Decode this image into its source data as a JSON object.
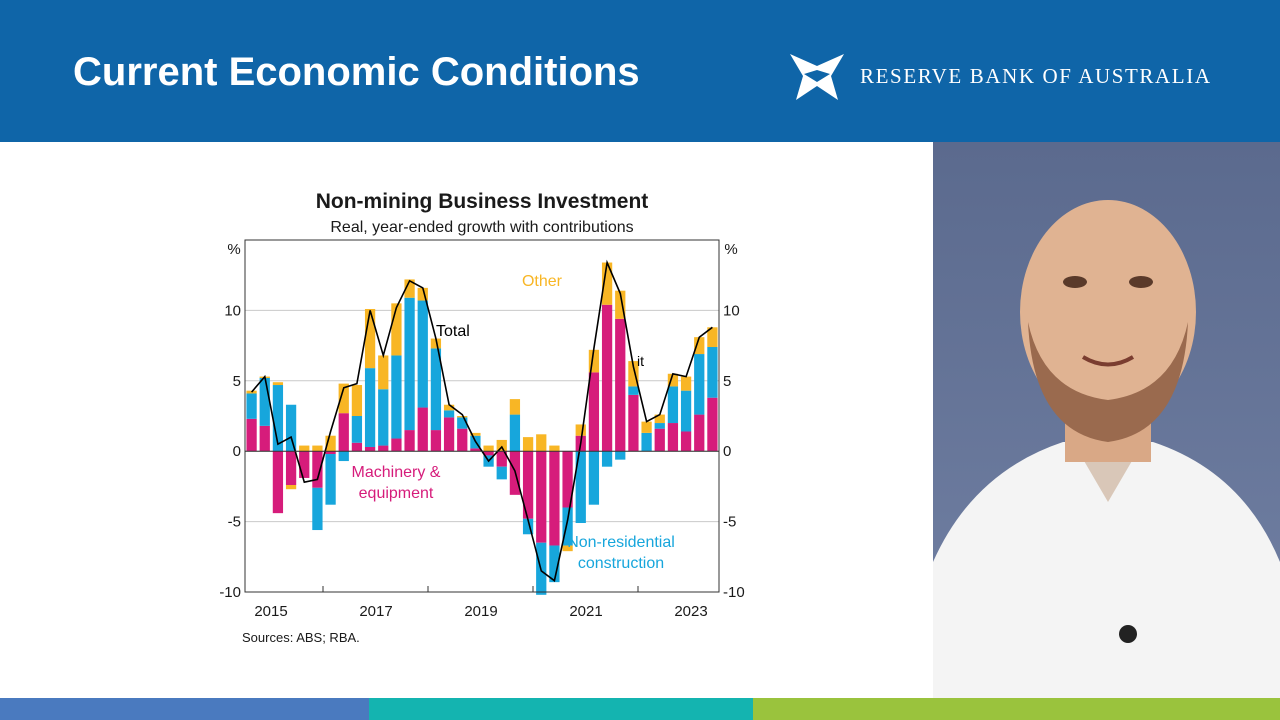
{
  "slide": {
    "title": "Current Economic Conditions",
    "brand": "RESERVE BANK OF AUSTRALIA",
    "logo_icon": "rba-star-logo",
    "colors": {
      "header": "#0f65a8",
      "footer": [
        "#4a7abf",
        "#14b4b0",
        "#9ac33d"
      ]
    }
  },
  "chart_data": {
    "type": "bar",
    "title": "Non-mining Business Investment",
    "subtitle": "Real, year-ended growth with contributions",
    "ylabel_left": "%",
    "ylabel_right": "%",
    "ylim": [
      -10,
      15
    ],
    "yticks": [
      -10,
      -5,
      0,
      5,
      10
    ],
    "x_tick_labels": [
      "2015",
      "2017",
      "2019",
      "2021",
      "2023"
    ],
    "source": "Sources: ABS; RBA.",
    "grid": true,
    "series": [
      {
        "name": "Machinery & equipment",
        "color": "#d61c7b",
        "values": [
          2.3,
          1.8,
          -4.4,
          -2.4,
          -1.9,
          -2.6,
          -0.2,
          2.7,
          0.6,
          0.3,
          0.4,
          0.9,
          1.5,
          3.1,
          1.5,
          2.4,
          1.6,
          0.2,
          -0.3,
          -1.1,
          -3.1,
          -4.8,
          -6.5,
          -6.7,
          -4.0,
          1.1,
          5.6,
          10.4,
          9.4,
          4.0,
          0.0,
          1.6,
          2.0,
          1.4,
          2.6,
          3.8
        ]
      },
      {
        "name": "Non-residential construction",
        "color": "#17a6dc",
        "values": [
          1.8,
          3.4,
          4.7,
          3.3,
          0.0,
          -3.0,
          -3.6,
          -0.7,
          1.9,
          5.6,
          4.0,
          5.9,
          9.4,
          7.6,
          5.8,
          0.5,
          0.8,
          0.9,
          -0.8,
          -0.9,
          2.6,
          -1.1,
          -3.7,
          -2.6,
          -2.7,
          -5.1,
          -3.8,
          -1.1,
          -0.6,
          0.6,
          1.3,
          0.4,
          2.6,
          2.9,
          4.3,
          3.6
        ]
      },
      {
        "name": "Other",
        "color": "#f8b625",
        "values": [
          0.2,
          0.1,
          0.2,
          -0.3,
          0.4,
          0.4,
          1.1,
          2.1,
          2.2,
          4.2,
          2.4,
          3.7,
          1.3,
          0.9,
          0.7,
          0.4,
          0.1,
          0.2,
          0.4,
          0.8,
          1.1,
          1.0,
          1.2,
          0.4,
          -0.4,
          0.8,
          1.6,
          3.0,
          2.0,
          1.8,
          0.8,
          0.6,
          0.9,
          1.0,
          1.2,
          1.4
        ]
      }
    ],
    "total": {
      "name": "Total",
      "color": "#000000",
      "values": [
        4.2,
        5.3,
        0.5,
        1.0,
        -2.2,
        -2.0,
        1.4,
        4.5,
        4.8,
        10.0,
        6.8,
        10.2,
        12.1,
        11.6,
        8.0,
        3.3,
        2.6,
        0.7,
        -0.7,
        0.3,
        -1.4,
        -4.9,
        -8.5,
        -9.2,
        -4.9,
        0.6,
        7.3,
        13.4,
        11.2,
        6.0,
        2.1,
        2.6,
        5.5,
        5.3,
        8.1,
        8.8
      ]
    },
    "annotations": [
      {
        "text": "Other",
        "color": "#f8b625",
        "series": "Other"
      },
      {
        "text": "Total",
        "color": "#000000",
        "series": "Total"
      },
      {
        "text": "it",
        "color": "#000000"
      },
      {
        "lines": [
          "Machinery &",
          "equipment"
        ],
        "color": "#d61c7b",
        "series": "Machinery & equipment"
      },
      {
        "lines": [
          "Non-residential",
          "construction"
        ],
        "color": "#17a6dc",
        "series": "Non-residential construction"
      }
    ]
  }
}
